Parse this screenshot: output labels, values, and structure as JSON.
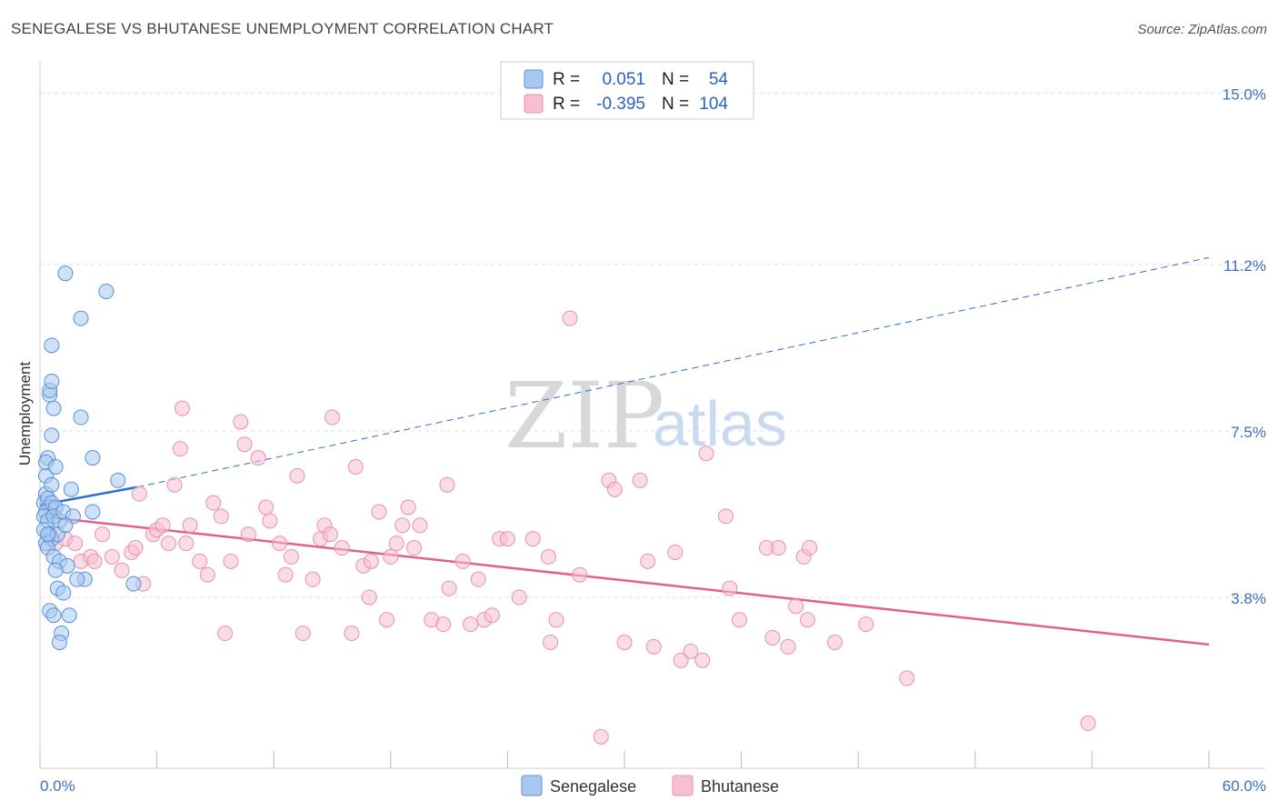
{
  "title": "SENEGALESE VS BHUTANESE UNEMPLOYMENT CORRELATION CHART",
  "source": "Source: ZipAtlas.com",
  "watermark": {
    "zip": "ZIP",
    "atlas": "atlas"
  },
  "colors": {
    "senegalese_fill": "#a8c8f0",
    "senegalese_stroke": "#5a90d8",
    "senegalese_line": "#2b6fd0",
    "bhutanese_fill": "#f6c0d2",
    "bhutanese_stroke": "#e890b0",
    "bhutanese_line": "#e0608f",
    "grid": "#dddddd",
    "axis_label": "#3a6fc4"
  },
  "legend": {
    "r_label": "R =",
    "n_label": "N =",
    "senegalese": {
      "r": "0.051",
      "n": "54"
    },
    "bhutanese": {
      "r": "-0.395",
      "n": "104"
    }
  },
  "bottom_legend": {
    "senegalese": "Senegalese",
    "bhutanese": "Bhutanese"
  },
  "chart_data": {
    "type": "scatter",
    "title": "SENEGALESE VS BHUTANESE UNEMPLOYMENT CORRELATION CHART",
    "xlabel": "",
    "ylabel": "Unemployment",
    "xlim": [
      0,
      60
    ],
    "ylim": [
      0,
      15.5
    ],
    "x_tick_labels": [
      "0.0%",
      "60.0%"
    ],
    "y_ticks": [
      3.8,
      7.5,
      11.2,
      15.0
    ],
    "y_tick_labels": [
      "3.8%",
      "7.5%",
      "11.2%",
      "15.0%"
    ],
    "grid": true,
    "series": [
      {
        "name": "Senegalese",
        "r": 0.051,
        "n": 54,
        "trend": {
          "x0": 0.0,
          "y0": 5.85,
          "x1": 5.0,
          "y1": 6.25,
          "x_dashed_end": 60.0,
          "y_dashed_end": 11.35
        },
        "points": [
          [
            0.2,
            5.9
          ],
          [
            0.3,
            6.1
          ],
          [
            0.4,
            6.0
          ],
          [
            0.5,
            5.8
          ],
          [
            0.3,
            5.7
          ],
          [
            0.6,
            5.9
          ],
          [
            0.8,
            5.8
          ],
          [
            0.2,
            5.6
          ],
          [
            0.4,
            5.5
          ],
          [
            0.7,
            5.6
          ],
          [
            1.0,
            5.5
          ],
          [
            1.2,
            5.7
          ],
          [
            0.5,
            5.2
          ],
          [
            0.3,
            5.0
          ],
          [
            0.6,
            5.1
          ],
          [
            0.9,
            5.2
          ],
          [
            0.4,
            4.9
          ],
          [
            0.7,
            4.7
          ],
          [
            1.0,
            4.6
          ],
          [
            1.4,
            4.5
          ],
          [
            0.8,
            4.4
          ],
          [
            2.3,
            4.2
          ],
          [
            1.9,
            4.2
          ],
          [
            0.9,
            4.0
          ],
          [
            1.2,
            3.9
          ],
          [
            0.5,
            3.5
          ],
          [
            0.7,
            3.4
          ],
          [
            1.5,
            3.4
          ],
          [
            1.1,
            3.0
          ],
          [
            1.0,
            2.8
          ],
          [
            4.8,
            4.1
          ],
          [
            0.3,
            6.5
          ],
          [
            0.6,
            6.3
          ],
          [
            1.6,
            6.2
          ],
          [
            4.0,
            6.4
          ],
          [
            0.4,
            6.9
          ],
          [
            0.3,
            6.8
          ],
          [
            0.8,
            6.7
          ],
          [
            2.7,
            6.9
          ],
          [
            0.6,
            7.4
          ],
          [
            2.1,
            7.8
          ],
          [
            0.7,
            8.0
          ],
          [
            0.5,
            8.3
          ],
          [
            0.5,
            8.4
          ],
          [
            0.6,
            8.6
          ],
          [
            0.6,
            9.4
          ],
          [
            2.1,
            10.0
          ],
          [
            3.4,
            10.6
          ],
          [
            1.3,
            11.0
          ],
          [
            1.7,
            5.6
          ],
          [
            2.7,
            5.7
          ],
          [
            0.2,
            5.3
          ],
          [
            0.4,
            5.2
          ],
          [
            1.3,
            5.4
          ]
        ]
      },
      {
        "name": "Bhutanese",
        "r": -0.395,
        "n": 104,
        "trend": {
          "x0": 0.0,
          "y0": 5.6,
          "x1": 60.0,
          "y1": 2.75
        },
        "points": [
          [
            0.5,
            5.2
          ],
          [
            0.8,
            5.0
          ],
          [
            1.3,
            5.1
          ],
          [
            1.8,
            5.0
          ],
          [
            2.1,
            4.6
          ],
          [
            2.6,
            4.7
          ],
          [
            2.8,
            4.6
          ],
          [
            3.2,
            5.2
          ],
          [
            3.7,
            4.7
          ],
          [
            4.2,
            4.4
          ],
          [
            4.7,
            4.8
          ],
          [
            4.9,
            4.9
          ],
          [
            5.3,
            4.1
          ],
          [
            5.1,
            6.1
          ],
          [
            5.8,
            5.2
          ],
          [
            6.0,
            5.3
          ],
          [
            6.3,
            5.4
          ],
          [
            6.6,
            5.0
          ],
          [
            6.9,
            6.3
          ],
          [
            7.2,
            7.1
          ],
          [
            7.5,
            5.0
          ],
          [
            7.7,
            5.4
          ],
          [
            7.3,
            8.0
          ],
          [
            8.2,
            4.6
          ],
          [
            8.6,
            4.3
          ],
          [
            8.9,
            5.9
          ],
          [
            9.3,
            5.6
          ],
          [
            9.5,
            3.0
          ],
          [
            9.8,
            4.6
          ],
          [
            10.3,
            7.7
          ],
          [
            10.5,
            7.2
          ],
          [
            11.2,
            6.9
          ],
          [
            10.7,
            5.2
          ],
          [
            11.6,
            5.8
          ],
          [
            11.8,
            5.5
          ],
          [
            12.3,
            5.0
          ],
          [
            12.6,
            4.3
          ],
          [
            12.9,
            4.7
          ],
          [
            13.2,
            6.5
          ],
          [
            13.5,
            3.0
          ],
          [
            14.0,
            4.2
          ],
          [
            14.4,
            5.1
          ],
          [
            14.6,
            5.4
          ],
          [
            14.9,
            5.2
          ],
          [
            15.0,
            7.8
          ],
          [
            15.5,
            4.9
          ],
          [
            16.0,
            3.0
          ],
          [
            16.2,
            6.7
          ],
          [
            16.6,
            4.5
          ],
          [
            16.9,
            3.8
          ],
          [
            17.0,
            4.6
          ],
          [
            17.4,
            5.7
          ],
          [
            17.8,
            3.3
          ],
          [
            18.0,
            4.7
          ],
          [
            18.3,
            5.0
          ],
          [
            18.6,
            5.4
          ],
          [
            18.9,
            5.8
          ],
          [
            19.2,
            4.9
          ],
          [
            19.5,
            5.4
          ],
          [
            20.1,
            3.3
          ],
          [
            20.7,
            3.2
          ],
          [
            21.0,
            4.0
          ],
          [
            20.9,
            6.3
          ],
          [
            21.7,
            4.6
          ],
          [
            22.1,
            3.2
          ],
          [
            22.5,
            4.2
          ],
          [
            22.8,
            3.3
          ],
          [
            23.2,
            3.4
          ],
          [
            23.6,
            5.1
          ],
          [
            24.0,
            5.1
          ],
          [
            24.6,
            3.8
          ],
          [
            25.3,
            5.1
          ],
          [
            26.1,
            4.7
          ],
          [
            26.2,
            2.8
          ],
          [
            26.5,
            3.3
          ],
          [
            27.2,
            10.0
          ],
          [
            27.7,
            4.3
          ],
          [
            28.8,
            0.7
          ],
          [
            29.2,
            6.4
          ],
          [
            29.5,
            6.2
          ],
          [
            30.0,
            2.8
          ],
          [
            30.8,
            6.4
          ],
          [
            31.2,
            4.6
          ],
          [
            31.5,
            2.7
          ],
          [
            32.6,
            4.8
          ],
          [
            32.9,
            2.4
          ],
          [
            33.4,
            2.6
          ],
          [
            34.0,
            2.4
          ],
          [
            34.2,
            7.0
          ],
          [
            35.2,
            5.6
          ],
          [
            35.4,
            4.0
          ],
          [
            35.9,
            3.3
          ],
          [
            37.3,
            4.9
          ],
          [
            37.6,
            2.9
          ],
          [
            37.9,
            4.9
          ],
          [
            38.4,
            2.7
          ],
          [
            38.8,
            3.6
          ],
          [
            39.2,
            4.7
          ],
          [
            39.4,
            3.3
          ],
          [
            39.5,
            4.9
          ],
          [
            40.8,
            2.8
          ],
          [
            42.4,
            3.2
          ],
          [
            44.5,
            2.0
          ],
          [
            53.8,
            1.0
          ]
        ]
      }
    ]
  }
}
